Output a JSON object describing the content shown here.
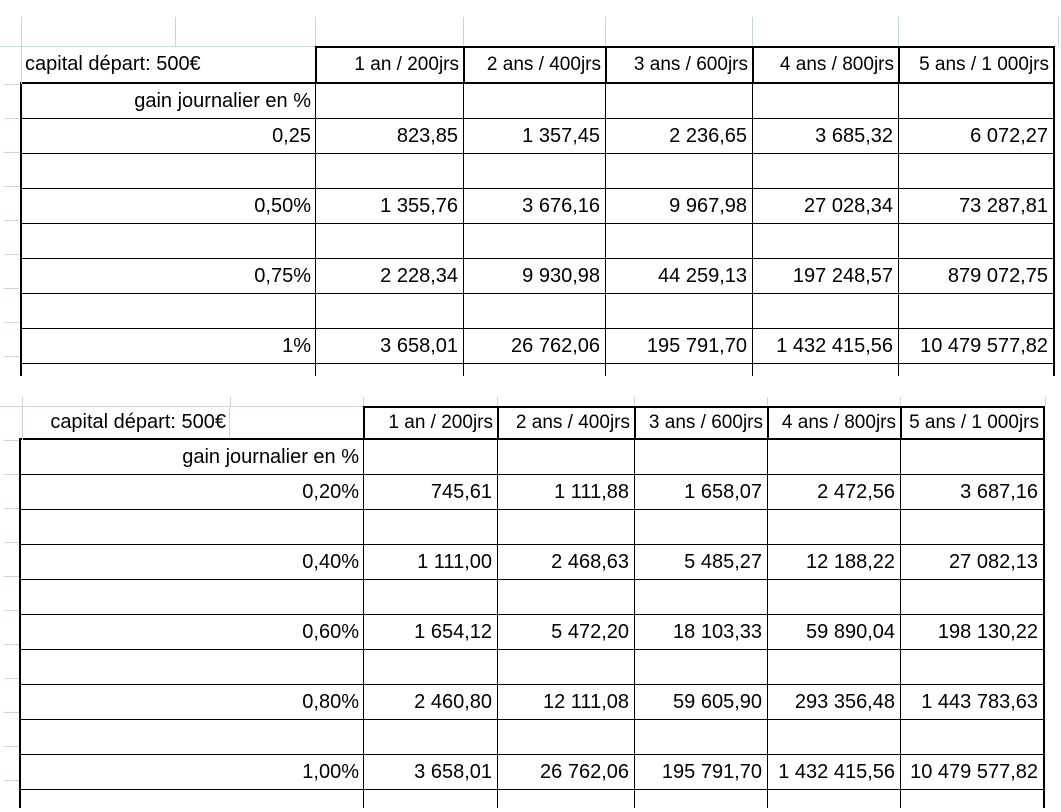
{
  "tables": [
    {
      "title": "capital départ: 500€",
      "gain_label": "gain journalier en %",
      "columns": [
        "1 an / 200jrs",
        "2 ans / 400jrs",
        "3 ans / 600jrs",
        "4 ans / 800jrs",
        "5 ans / 1 000jrs"
      ],
      "rows": [
        {
          "label": "0,25",
          "values": [
            "823,85",
            "1 357,45",
            "2 236,65",
            "3 685,32",
            "6 072,27"
          ]
        },
        {
          "label": "0,50%",
          "values": [
            "1 355,76",
            "3 676,16",
            "9 967,98",
            "27 028,34",
            "73 287,81"
          ]
        },
        {
          "label": "0,75%",
          "values": [
            "2 228,34",
            "9 930,98",
            "44 259,13",
            "197 248,57",
            "879 072,75"
          ]
        },
        {
          "label": "1%",
          "values": [
            "3 658,01",
            "26 762,06",
            "195 791,70",
            "1 432 415,56",
            "10 479 577,82"
          ]
        }
      ]
    },
    {
      "title": "capital départ: 500€",
      "gain_label": "gain journalier en %",
      "columns": [
        "1 an / 200jrs",
        "2 ans / 400jrs",
        "3 ans / 600jrs",
        "4 ans / 800jrs",
        "5 ans / 1 000jrs"
      ],
      "rows": [
        {
          "label": "0,20%",
          "values": [
            "745,61",
            "1 111,88",
            "1 658,07",
            "2 472,56",
            "3 687,16"
          ]
        },
        {
          "label": "0,40%",
          "values": [
            "1 111,00",
            "2 468,63",
            "5 485,27",
            "12 188,22",
            "27 082,13"
          ]
        },
        {
          "label": "0,60%",
          "values": [
            "1 654,12",
            "5 472,20",
            "18 103,33",
            "59 890,04",
            "198 130,22"
          ]
        },
        {
          "label": "0,80%",
          "values": [
            "2 460,80",
            "12 111,08",
            "59 605,90",
            "293 356,48",
            "1 443 783,63"
          ]
        },
        {
          "label": "1,00%",
          "values": [
            "3 658,01",
            "26 762,06",
            "195 791,70",
            "1 432 415,56",
            "10 479 577,82"
          ]
        }
      ]
    }
  ]
}
